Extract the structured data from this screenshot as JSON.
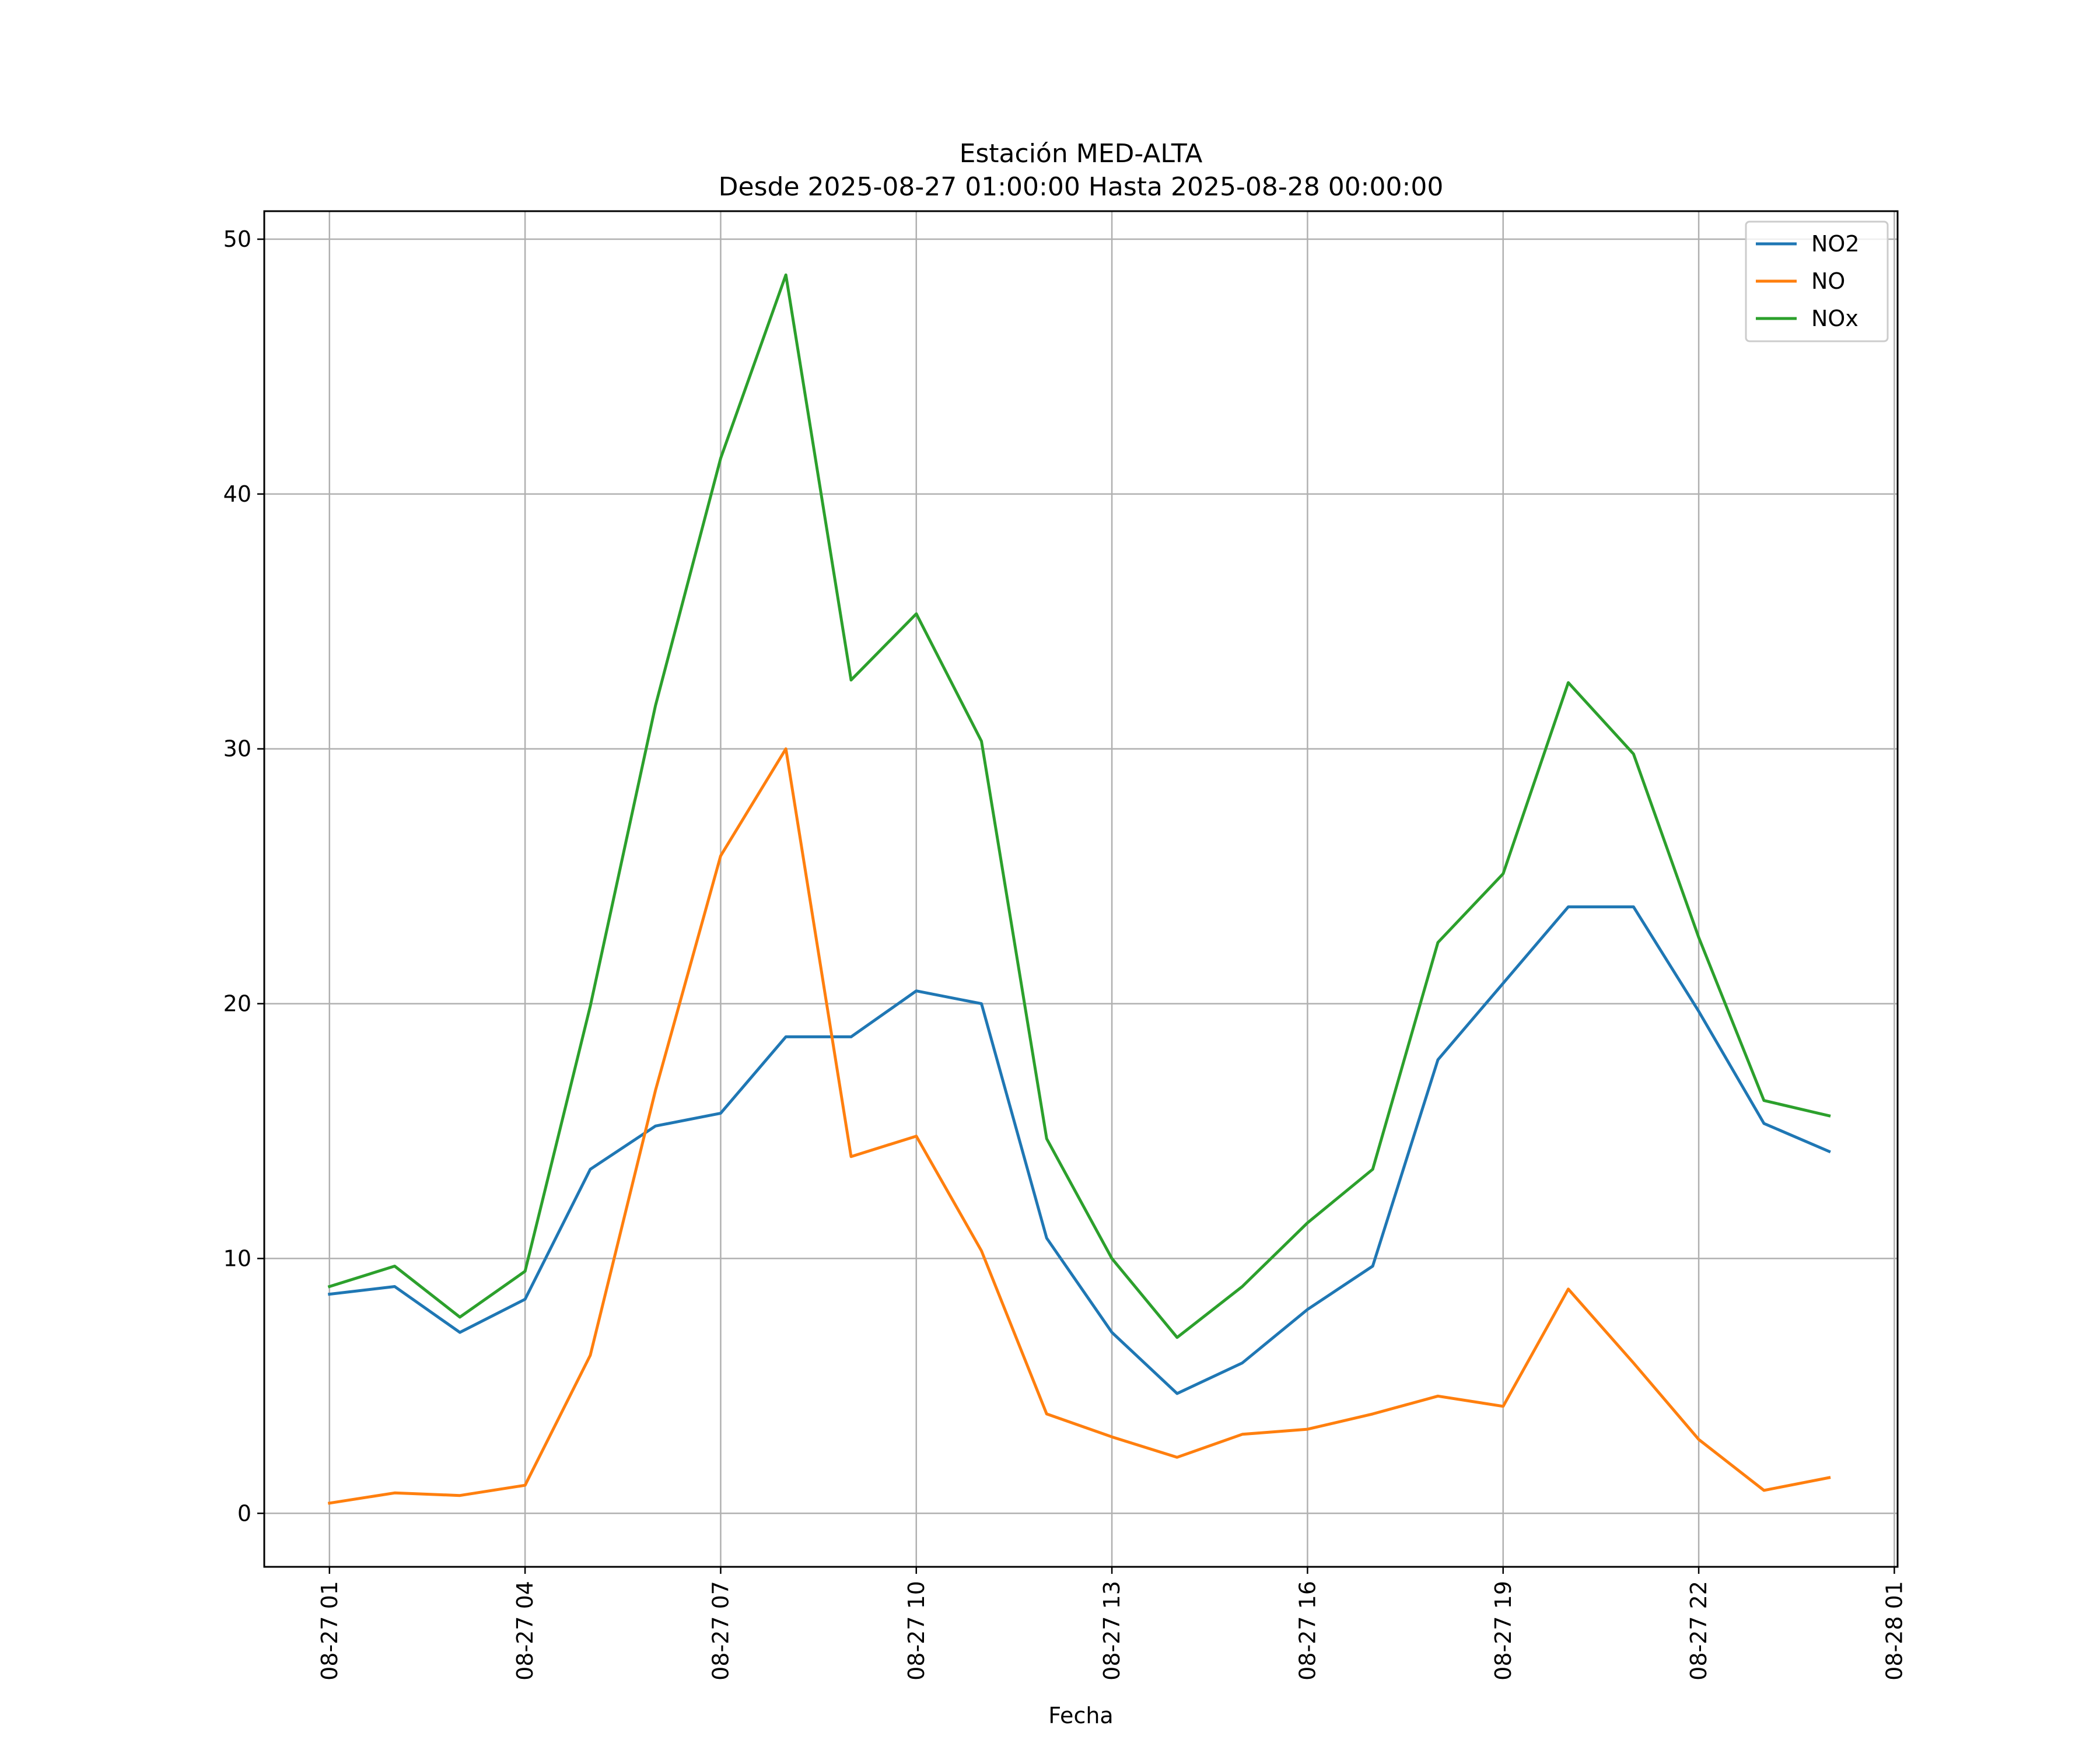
{
  "chart_data": {
    "type": "line",
    "title": "Estación MED-ALTA",
    "subtitle": "Desde 2025-08-27 01:00:00 Hasta 2025-08-28 00:00:00",
    "xlabel": "Fecha",
    "ylabel": "",
    "x": [
      "2025-08-27 01:00",
      "2025-08-27 02:00",
      "2025-08-27 03:00",
      "2025-08-27 04:00",
      "2025-08-27 05:00",
      "2025-08-27 06:00",
      "2025-08-27 07:00",
      "2025-08-27 08:00",
      "2025-08-27 09:00",
      "2025-08-27 10:00",
      "2025-08-27 11:00",
      "2025-08-27 12:00",
      "2025-08-27 13:00",
      "2025-08-27 14:00",
      "2025-08-27 15:00",
      "2025-08-27 16:00",
      "2025-08-27 17:00",
      "2025-08-27 18:00",
      "2025-08-27 19:00",
      "2025-08-27 20:00",
      "2025-08-27 21:00",
      "2025-08-27 22:00",
      "2025-08-27 23:00",
      "2025-08-28 00:00"
    ],
    "xlim": [
      "2025-08-27 00:00",
      "2025-08-28 01:03"
    ],
    "ylim": [
      -2.1,
      51.1
    ],
    "x_ticks": [
      "08-27 01",
      "08-27 04",
      "08-27 07",
      "08-27 10",
      "08-27 13",
      "08-27 16",
      "08-27 19",
      "08-27 22",
      "08-28 01"
    ],
    "y_ticks": [
      "0",
      "10",
      "20",
      "30",
      "40",
      "50"
    ],
    "grid": true,
    "legend_position": "top-right",
    "series": [
      {
        "name": "NO2",
        "color": "#1f77b4",
        "values": [
          8.6,
          8.9,
          7.1,
          8.4,
          13.5,
          15.2,
          15.7,
          18.7,
          18.7,
          20.5,
          20.0,
          10.8,
          7.1,
          4.7,
          5.9,
          8.0,
          9.7,
          17.8,
          20.8,
          23.8,
          23.8,
          19.7,
          15.3,
          14.2
        ]
      },
      {
        "name": "NO",
        "color": "#ff7f0e",
        "values": [
          0.4,
          0.8,
          0.7,
          1.1,
          6.2,
          16.6,
          25.8,
          30.0,
          14.0,
          14.8,
          10.3,
          3.9,
          3.0,
          2.2,
          3.1,
          3.3,
          3.9,
          4.6,
          4.2,
          8.8,
          5.9,
          2.9,
          0.9,
          1.4
        ]
      },
      {
        "name": "NOx",
        "color": "#2ca02c",
        "values": [
          8.9,
          9.7,
          7.7,
          9.5,
          19.9,
          31.7,
          41.4,
          48.6,
          32.7,
          35.3,
          30.3,
          14.7,
          10.0,
          6.9,
          8.9,
          11.4,
          13.5,
          22.4,
          25.1,
          32.6,
          29.8,
          22.6,
          16.2,
          15.6
        ]
      }
    ]
  }
}
